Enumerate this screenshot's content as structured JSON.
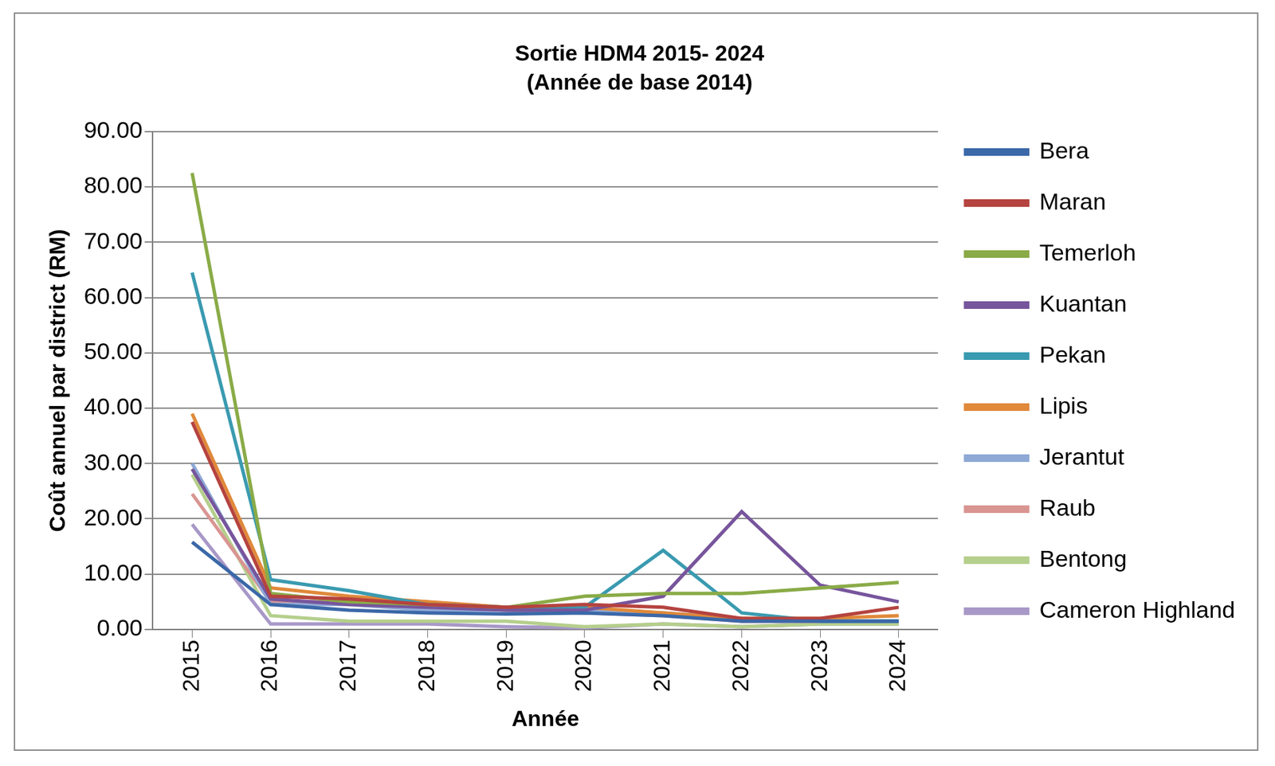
{
  "chart_data": {
    "type": "line",
    "title": "Sortie HDM4 2015- 2024",
    "subtitle": "(Année de base 2014)",
    "x_label": "Année",
    "y_label": "Coût annuel par district (RM)",
    "categories": [
      "2015",
      "2016",
      "2017",
      "2018",
      "2019",
      "2020",
      "2021",
      "2022",
      "2023",
      "2024"
    ],
    "series": [
      {
        "name": "Bera",
        "color": "#3b68a8",
        "values": [
          15.8,
          4.5,
          3.5,
          3.0,
          2.8,
          3.0,
          2.5,
          1.5,
          1.5,
          1.5
        ]
      },
      {
        "name": "Maran",
        "color": "#b5433f",
        "values": [
          37.5,
          6.0,
          5.5,
          4.5,
          4.0,
          4.5,
          4.0,
          2.0,
          2.0,
          4.0
        ]
      },
      {
        "name": "Temerloh",
        "color": "#8aab47",
        "values": [
          82.5,
          6.5,
          5.0,
          4.5,
          4.0,
          6.0,
          6.5,
          6.5,
          7.5,
          8.5
        ]
      },
      {
        "name": "Kuantan",
        "color": "#77559c",
        "values": [
          29.0,
          5.5,
          4.5,
          4.0,
          3.5,
          3.5,
          6.0,
          21.3,
          8.0,
          5.0
        ]
      },
      {
        "name": "Pekan",
        "color": "#3a9ab0",
        "values": [
          64.5,
          9.0,
          7.0,
          4.5,
          4.0,
          4.0,
          14.3,
          3.0,
          1.5,
          1.5
        ]
      },
      {
        "name": "Lipis",
        "color": "#e0893a",
        "values": [
          39.0,
          7.5,
          6.0,
          5.0,
          4.0,
          4.0,
          3.0,
          2.0,
          2.0,
          2.5
        ]
      },
      {
        "name": "Jerantut",
        "color": "#8fa9d6",
        "values": [
          30.0,
          4.5,
          4.5,
          3.5,
          3.5,
          3.5,
          3.0,
          2.0,
          1.5,
          1.5
        ]
      },
      {
        "name": "Raub",
        "color": "#d99592",
        "values": [
          24.5,
          5.0,
          5.0,
          4.5,
          3.5,
          3.0,
          2.5,
          1.5,
          1.5,
          1.5
        ]
      },
      {
        "name": "Bentong",
        "color": "#b5cf8c",
        "values": [
          28.0,
          2.5,
          1.5,
          1.5,
          1.5,
          0.5,
          1.0,
          0.5,
          1.0,
          1.0
        ]
      },
      {
        "name": "Cameron Highland",
        "color": "#a898c8",
        "values": [
          19.0,
          1.0,
          1.0,
          1.0,
          0.5,
          0.3,
          1.0,
          0.5,
          1.0,
          1.0
        ]
      }
    ],
    "ylim": [
      0,
      90
    ],
    "yticks": [
      {
        "value": 0,
        "label": "0.00"
      },
      {
        "value": 10,
        "label": "10.00"
      },
      {
        "value": 20,
        "label": "20.00"
      },
      {
        "value": 30,
        "label": "30.00"
      },
      {
        "value": 40,
        "label": "40.00"
      },
      {
        "value": 50,
        "label": "50.00"
      },
      {
        "value": 60,
        "label": "60.00"
      },
      {
        "value": 70,
        "label": "70.00"
      },
      {
        "value": 80,
        "label": "80.00"
      },
      {
        "value": 90,
        "label": "90.00"
      }
    ],
    "grid": true,
    "legend": "right"
  }
}
